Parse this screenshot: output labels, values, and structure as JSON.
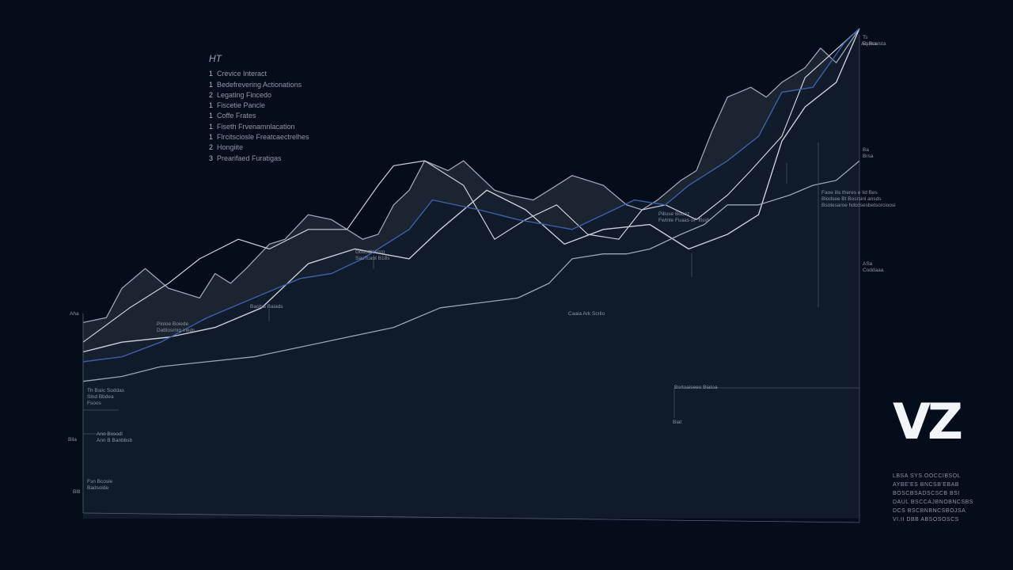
{
  "legend": {
    "title": "HT",
    "items": [
      {
        "num": "1",
        "label": "Crevice Interact"
      },
      {
        "num": "1",
        "label": "Bedefrevering Actionations"
      },
      {
        "num": "2",
        "label": "Legating Fincedo"
      },
      {
        "num": "1",
        "label": "Fiscetie Pancle"
      },
      {
        "num": "1",
        "label": "Coffe Frates"
      },
      {
        "num": "1",
        "label": "Fiseth Frvenamnlacation"
      },
      {
        "num": "1",
        "label": "Flrcitsciosle Freatcaectrelhes"
      },
      {
        "num": "2",
        "label": "Hongiite"
      },
      {
        "num": "3",
        "label": "Prearifaed Furatigas"
      }
    ]
  },
  "annotations": [
    {
      "id": "a1",
      "lines": [
        "Gooodlesoro",
        "Sau'fcaot B18s"
      ]
    },
    {
      "id": "a2",
      "lines": [
        "Baolsa Baiads"
      ]
    },
    {
      "id": "a3",
      "lines": [
        "Pinloe Boiede",
        "Dattlosrnig ineds"
      ]
    },
    {
      "id": "a4",
      "lines": [
        "Pilluse Bouaz",
        "Fwtnle Fuaas oF ffisid"
      ]
    },
    {
      "id": "a5",
      "lines": [
        "Caaia Ark Scrilo"
      ]
    },
    {
      "id": "a6",
      "lines": [
        "Faoe ilis theres e iid Bes",
        "Blodsee Bt Bosrsinl ansds",
        "Bsotesaroe hdcdsesbetsorcioosi"
      ]
    },
    {
      "id": "a7",
      "lines": [
        "Bsrtoaiseeo Biatoa"
      ]
    },
    {
      "id": "a8",
      "lines": [
        "Biat"
      ]
    },
    {
      "id": "a9",
      "lines": [
        "Th Bsiic Soddas",
        "Slnd Bbdea",
        "Fsoos"
      ]
    },
    {
      "id": "a10",
      "lines": [
        "Ano Bssodl",
        "Ann B Banbbsb"
      ]
    },
    {
      "id": "a11",
      "lines": [
        "Fsn Bcosle",
        "Badsoide"
      ]
    },
    {
      "id": "a12",
      "lines": [
        "Aha"
      ]
    },
    {
      "id": "a13",
      "lines": [
        "Bila"
      ]
    },
    {
      "id": "a14",
      "lines": [
        "Bl8"
      ]
    },
    {
      "id": "a15",
      "lines": [
        "Ts",
        "Bsssa"
      ]
    },
    {
      "id": "a16",
      "lines": [
        "Aq Boalsta"
      ]
    },
    {
      "id": "a17",
      "lines": [
        "Ba",
        "Brsa"
      ]
    },
    {
      "id": "a18",
      "lines": [
        "ASa",
        "Coddaaa"
      ]
    }
  ],
  "logo": "VZ",
  "footnote": [
    "LBSA SYS OOCCIBSOL",
    "AYBE'ES BNCSB'EBAB",
    "BOSCBSADSCSCB BSI",
    "DAUL BSCCAJBNOBNCSBS",
    "DCS BSCBNBNCSBOJSA",
    "VI.II DBB ABSOSOSCS"
  ],
  "colors": {
    "background": "#060d1a",
    "area_light": "#1b2733",
    "area_mid": "#14202d",
    "area_dark": "#0e1a2a",
    "line_light": "#c9cfd8",
    "line_blue": "#3d5fa8",
    "line_grey": "#9aa5b4"
  },
  "chart_data": {
    "type": "area",
    "ylim": [
      0,
      100
    ],
    "xlim": [
      0,
      100
    ],
    "series": [
      {
        "x": [
          0,
          3,
          5,
          8,
          11,
          15,
          17,
          19,
          21,
          24,
          26,
          29,
          32,
          36,
          38,
          40,
          42,
          44,
          47,
          49,
          51,
          53,
          55,
          58,
          60,
          63,
          65,
          67,
          70,
          72,
          74,
          77,
          79,
          81,
          83,
          86,
          88,
          90,
          93,
          95,
          97,
          100
        ],
        "y": [
          40,
          41,
          47,
          51,
          47,
          45,
          50,
          48,
          51,
          56,
          57,
          62,
          61,
          57,
          58,
          64,
          67,
          73,
          71,
          73,
          70,
          67,
          66,
          65,
          67,
          70,
          69,
          68,
          64,
          63,
          65,
          69,
          71,
          79,
          86,
          88,
          86,
          89,
          92,
          96,
          93,
          100
        ]
      },
      {
        "x": [
          0,
          5,
          11,
          17,
          23,
          29,
          35,
          42,
          46,
          52,
          57,
          62,
          67,
          73,
          78,
          83,
          87,
          90,
          93,
          97,
          100
        ],
        "y": [
          34,
          36,
          37,
          39,
          43,
          52,
          55,
          53,
          59,
          67,
          63,
          56,
          59,
          60,
          55,
          58,
          62,
          77,
          84,
          89,
          100
        ]
      },
      {
        "x": [
          0,
          6,
          11,
          15,
          20,
          24,
          29,
          34,
          38,
          40,
          44,
          49,
          53,
          57,
          61,
          65,
          69,
          72,
          75,
          79,
          83,
          86,
          90,
          93,
          100
        ],
        "y": [
          36,
          43,
          48,
          53,
          57,
          55,
          59,
          59,
          68,
          72,
          73,
          68,
          57,
          61,
          64,
          58,
          57,
          63,
          64,
          61,
          66,
          71,
          78,
          90,
          100
        ]
      },
      {
        "x": [
          0,
          5,
          10,
          16,
          22,
          28,
          32,
          36,
          39,
          42,
          45,
          51,
          56,
          63,
          67,
          71,
          75,
          78,
          83,
          87,
          90,
          94,
          98,
          100
        ],
        "y": [
          32,
          33,
          36,
          41,
          45,
          49,
          50,
          53,
          56,
          59,
          65,
          63,
          61,
          59,
          62,
          65,
          64,
          68,
          73,
          78,
          87,
          88,
          97,
          100
        ]
      },
      {
        "x": [
          0,
          5,
          10,
          16,
          22,
          28,
          34,
          40,
          46,
          51,
          56,
          60,
          63,
          67,
          70,
          73,
          77,
          80,
          83,
          87,
          91,
          94,
          97,
          100
        ],
        "y": [
          28,
          29,
          31,
          32,
          33,
          35,
          37,
          39,
          43,
          44,
          45,
          48,
          53,
          54,
          54,
          55,
          58,
          60,
          64,
          64,
          66,
          68,
          69,
          73
        ]
      }
    ]
  }
}
